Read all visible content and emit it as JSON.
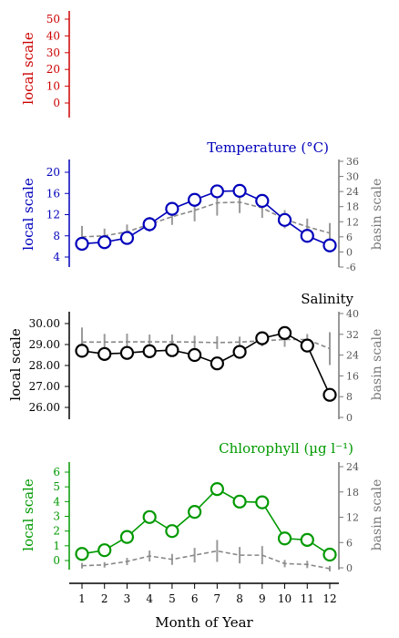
{
  "chart_data": [
    {
      "type": "line",
      "panel": "top",
      "title": "",
      "ylabel_left": "local scale",
      "left_ticks": [
        0,
        10,
        20,
        30,
        40,
        50
      ],
      "left_color": "#cc0000",
      "series": []
    },
    {
      "type": "line",
      "panel": "temperature",
      "title": "Temperature (°C)",
      "title_color": "#0000bb",
      "ylabel_left": "local scale",
      "ylabel_right": "basin scale",
      "left_ticks": [
        4,
        8,
        12,
        16,
        20
      ],
      "right_ticks": [
        -6,
        0,
        6,
        12,
        18,
        24,
        30,
        36
      ],
      "left_color": "#0000bb",
      "x": [
        1,
        2,
        3,
        4,
        5,
        6,
        7,
        8,
        9,
        10,
        11,
        12
      ],
      "series": [
        {
          "values": [
            6.5,
            6.8,
            7.6,
            10.2,
            13.1,
            14.8,
            16.4,
            16.5,
            14.6,
            11.0,
            8.0,
            6.2
          ]
        },
        {
          "axis": "right",
          "values": [
            6,
            6.4,
            8,
            11,
            14,
            16.5,
            19.5,
            19.8,
            17.5,
            13,
            10,
            7.5
          ]
        }
      ]
    },
    {
      "type": "line",
      "panel": "salinity",
      "title": "Salinity",
      "title_color": "#000000",
      "ylabel_left": "local scale",
      "ylabel_right": "basin scale",
      "left_ticks": [
        "26.00",
        "27.00",
        "28.00",
        "29.00",
        "30.00"
      ],
      "right_ticks": [
        0,
        8,
        16,
        24,
        32,
        40
      ],
      "left_color": "#000000",
      "x": [
        1,
        2,
        3,
        4,
        5,
        6,
        7,
        8,
        9,
        10,
        11,
        12
      ],
      "series": [
        {
          "values": [
            28.7,
            28.55,
            28.6,
            28.68,
            28.73,
            28.5,
            28.1,
            28.65,
            29.3,
            29.55,
            28.95,
            26.6
          ]
        },
        {
          "axis": "right",
          "values": [
            29,
            29,
            29.1,
            29.1,
            29.1,
            29,
            28.8,
            29,
            29.5,
            30,
            30,
            26.5
          ]
        }
      ]
    },
    {
      "type": "line",
      "panel": "chlorophyll",
      "title": "Chlorophyll (µg l⁻¹)",
      "title_color": "#009900",
      "ylabel_left": "local scale",
      "ylabel_right": "basin scale",
      "xlabel": "Month of Year",
      "left_ticks": [
        0,
        1,
        2,
        3,
        4,
        5,
        6
      ],
      "right_ticks": [
        0,
        6,
        12,
        18,
        24
      ],
      "left_color": "#009900",
      "x": [
        1,
        2,
        3,
        4,
        5,
        6,
        7,
        8,
        9,
        10,
        11,
        12
      ],
      "series": [
        {
          "values": [
            0.45,
            0.7,
            1.6,
            2.95,
            2.0,
            3.3,
            4.85,
            4.0,
            3.95,
            1.5,
            1.4,
            0.4
          ]
        },
        {
          "axis": "right",
          "values": [
            0.5,
            0.7,
            1.5,
            2.8,
            2.0,
            3.0,
            4.0,
            3.0,
            3.0,
            1.0,
            0.8,
            -0.2
          ]
        }
      ]
    }
  ],
  "x_ticks": [
    "1",
    "2",
    "3",
    "4",
    "5",
    "6",
    "7",
    "8",
    "9",
    "10",
    "11",
    "12"
  ],
  "xlabel": "Month of Year"
}
